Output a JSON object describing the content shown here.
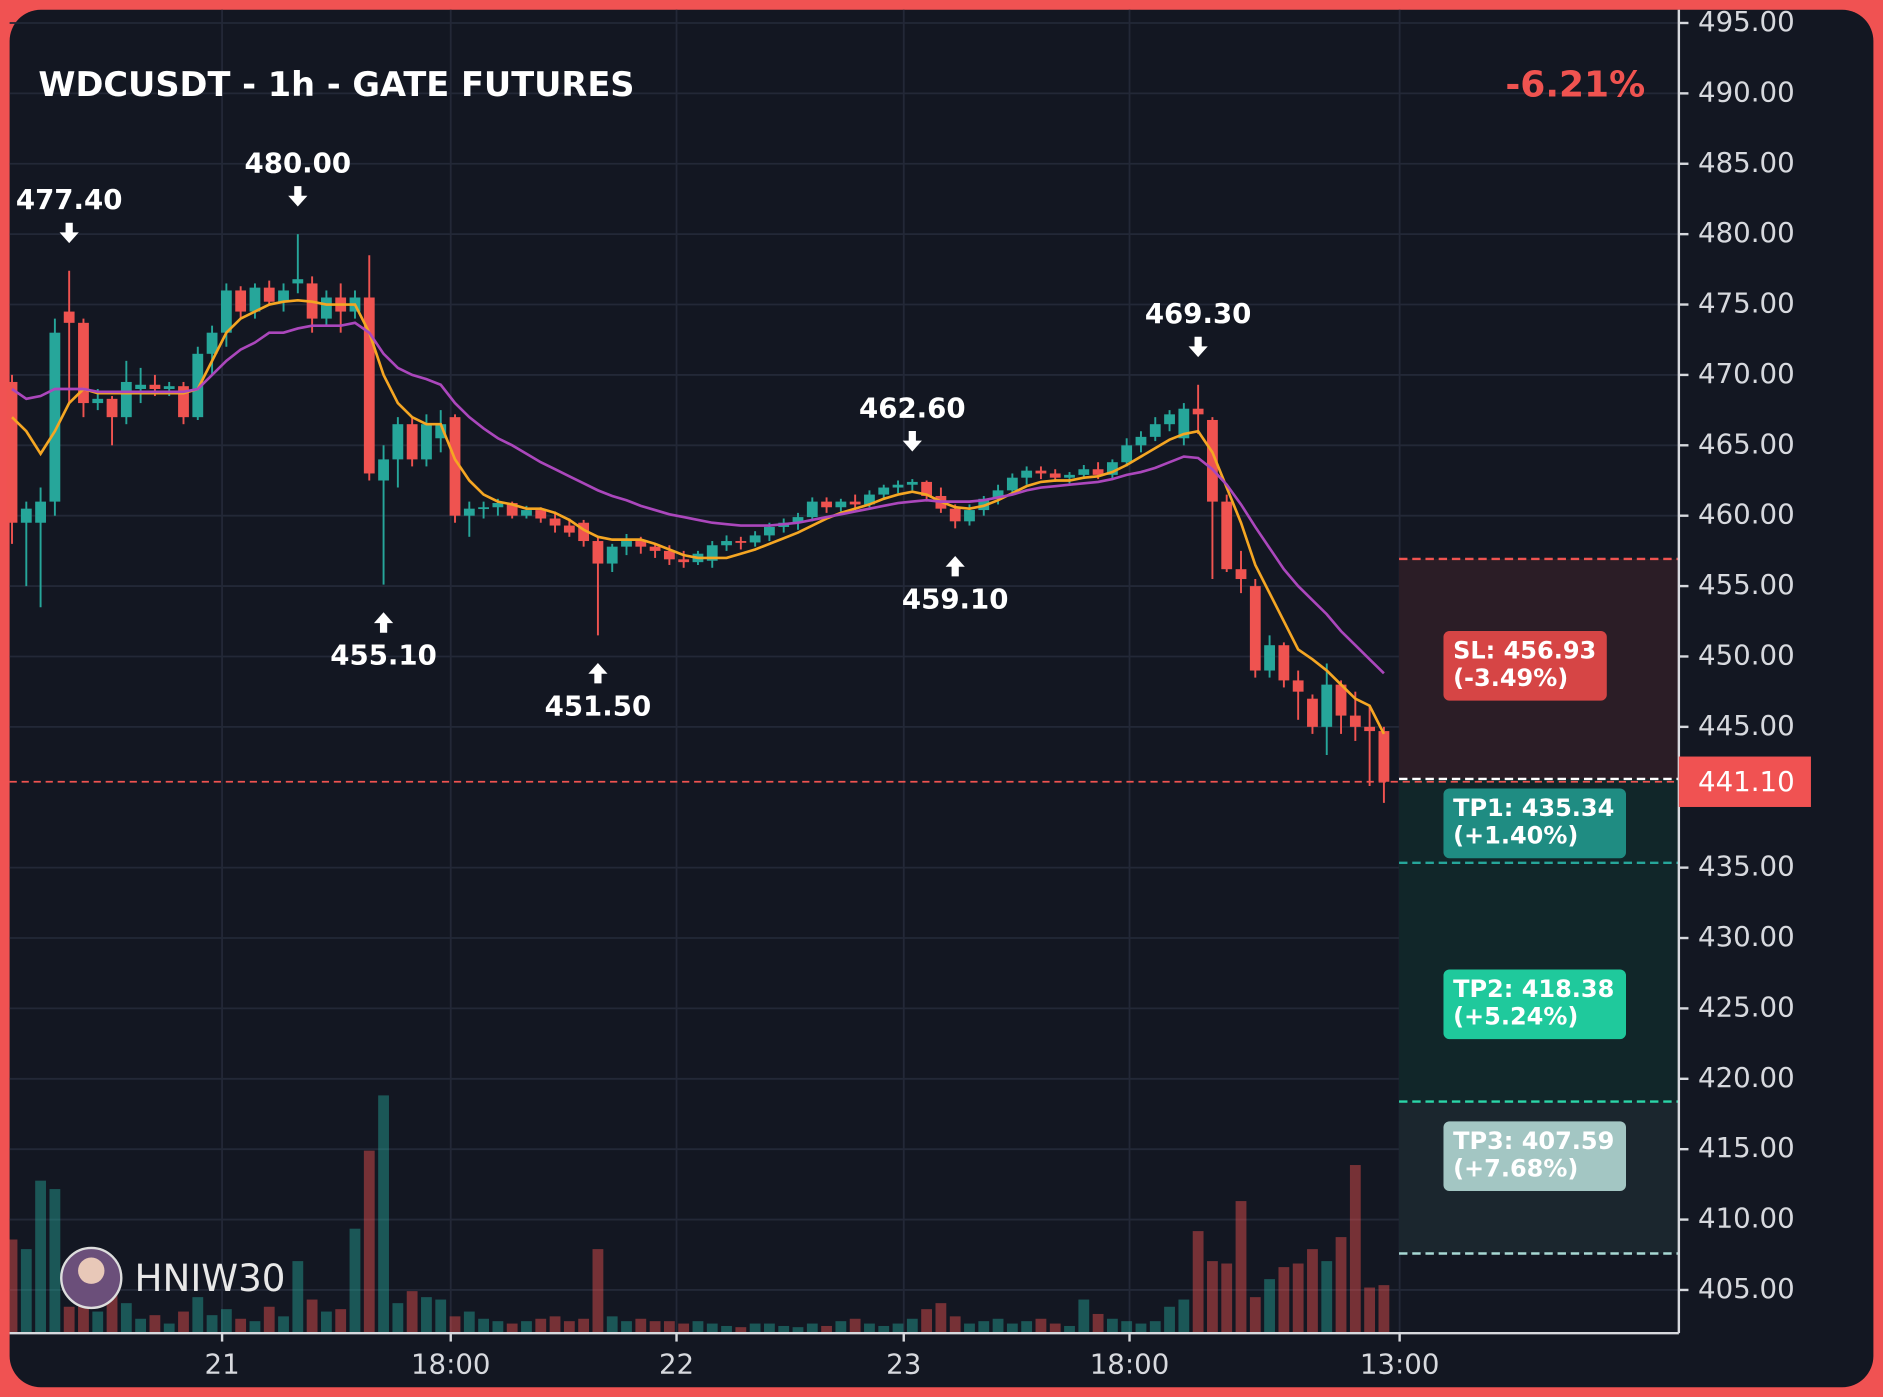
{
  "chart_data": {
    "type": "candlestick",
    "title": "WDCUSDT - 1h - GATE FUTURES",
    "change": "-6.21%",
    "watermark": "HNIW30",
    "ylim": [
      401.93,
      496.62
    ],
    "yticks": [
      {
        "value": 495,
        "label": "495.00"
      },
      {
        "value": 490,
        "label": "490.00"
      },
      {
        "value": 485,
        "label": "485.00"
      },
      {
        "value": 480,
        "label": "480.00"
      },
      {
        "value": 475,
        "label": "475.00"
      },
      {
        "value": 470,
        "label": "470.00"
      },
      {
        "value": 465,
        "label": "465.00"
      },
      {
        "value": 460,
        "label": "460.00"
      },
      {
        "value": 455,
        "label": "455.00"
      },
      {
        "value": 450,
        "label": "450.00"
      },
      {
        "value": 445,
        "label": "445.00"
      },
      {
        "value": 435,
        "label": "435.00"
      },
      {
        "value": 430,
        "label": "430.00"
      },
      {
        "value": 425,
        "label": "425.00"
      },
      {
        "value": 420,
        "label": "420.00"
      },
      {
        "value": 415,
        "label": "415.00"
      },
      {
        "value": 410,
        "label": "410.00"
      },
      {
        "value": 405,
        "label": "405.00"
      }
    ],
    "xticks": [
      {
        "value": 14.7,
        "label": "21"
      },
      {
        "value": 30.7,
        "label": "18:00"
      },
      {
        "value": 46.5,
        "label": "22"
      },
      {
        "value": 62.4,
        "label": "23"
      },
      {
        "value": 78.2,
        "label": "18:00"
      },
      {
        "value": 97.1,
        "label": "13:00"
      }
    ],
    "grid": true,
    "up_color": "#26a69a",
    "down_color": "#ef5350",
    "last_price": {
      "value": 441.1,
      "label": "441.10"
    },
    "candles": [
      [
        469.5,
        470,
        458,
        459.5
      ],
      [
        459.5,
        461,
        455,
        460.5
      ],
      [
        459.5,
        462,
        453.5,
        461
      ],
      [
        461,
        474,
        460,
        473
      ],
      [
        474.5,
        477.4,
        468,
        473.7
      ],
      [
        473.7,
        474,
        467,
        468
      ],
      [
        468,
        469,
        467.5,
        468.3
      ],
      [
        468.3,
        468.5,
        465,
        467
      ],
      [
        467,
        471,
        466.5,
        469.5
      ],
      [
        469,
        470.5,
        468,
        469.3
      ],
      [
        469.3,
        470,
        468.5,
        469
      ],
      [
        469,
        469.5,
        468.5,
        469.2
      ],
      [
        469.2,
        469.5,
        466.5,
        467
      ],
      [
        467,
        472,
        466.8,
        471.5
      ],
      [
        471.5,
        473.5,
        470,
        473
      ],
      [
        473,
        476.5,
        472,
        476
      ],
      [
        476,
        476.3,
        474,
        474.5
      ],
      [
        474.5,
        476.5,
        474,
        476.2
      ],
      [
        476.2,
        476.7,
        475,
        475.2
      ],
      [
        475.2,
        476.5,
        474.5,
        476
      ],
      [
        476.5,
        480,
        475.8,
        476.8
      ],
      [
        476.5,
        477,
        473,
        474
      ],
      [
        474,
        476,
        473.5,
        475.5
      ],
      [
        475.5,
        476.5,
        473,
        474.5
      ],
      [
        474.5,
        476,
        474,
        475.5
      ],
      [
        475.5,
        478.5,
        462.5,
        463
      ],
      [
        462.5,
        465,
        455.1,
        464
      ],
      [
        464,
        467,
        462,
        466.5
      ],
      [
        466.5,
        467,
        463.5,
        464
      ],
      [
        464,
        467.2,
        463.5,
        466.5
      ],
      [
        465.5,
        467.5,
        464.5,
        466.5
      ],
      [
        467,
        467.2,
        459.5,
        460
      ],
      [
        460,
        461,
        458.5,
        460.5
      ],
      [
        460.5,
        461,
        459.8,
        460.6
      ],
      [
        460.6,
        461.2,
        460,
        460.9
      ],
      [
        460.9,
        461,
        459.8,
        460
      ],
      [
        460,
        460.7,
        459.8,
        460.4
      ],
      [
        460.4,
        460.6,
        459.5,
        459.8
      ],
      [
        459.8,
        460.3,
        458.8,
        459.3
      ],
      [
        459.3,
        459.8,
        458.5,
        458.8
      ],
      [
        459.5,
        459.7,
        457.8,
        458.2
      ],
      [
        458.2,
        458.5,
        451.5,
        456.6
      ],
      [
        456.6,
        458,
        456,
        457.8
      ],
      [
        457.8,
        458.7,
        457.2,
        458.2
      ],
      [
        458.2,
        458.5,
        457.3,
        457.8
      ],
      [
        457.8,
        458,
        457,
        457.5
      ],
      [
        457.5,
        457.9,
        456.5,
        456.9
      ],
      [
        456.9,
        457.5,
        456.3,
        456.7
      ],
      [
        456.7,
        457.5,
        456.5,
        457.3
      ],
      [
        456.8,
        458.2,
        456.3,
        457.9
      ],
      [
        457.9,
        458.6,
        457.5,
        458.2
      ],
      [
        458.2,
        458.5,
        457.6,
        458.1
      ],
      [
        458.1,
        458.9,
        457.8,
        458.6
      ],
      [
        458.6,
        459.5,
        458.2,
        459.2
      ],
      [
        459.2,
        459.8,
        458.8,
        459.5
      ],
      [
        459.5,
        460.2,
        459,
        459.9
      ],
      [
        459.9,
        461.3,
        459.6,
        461
      ],
      [
        461,
        461.3,
        460.2,
        460.6
      ],
      [
        460.6,
        461.2,
        460.3,
        461
      ],
      [
        461,
        461.5,
        460.4,
        460.8
      ],
      [
        460.8,
        461.8,
        460.6,
        461.5
      ],
      [
        461.5,
        462.2,
        461.2,
        462
      ],
      [
        462,
        462.5,
        461.6,
        462.2
      ],
      [
        462.2,
        462.6,
        461.8,
        462.4
      ],
      [
        462.4,
        462.5,
        461,
        461.4
      ],
      [
        461.4,
        462,
        460.2,
        460.5
      ],
      [
        460.5,
        460.8,
        459.1,
        459.6
      ],
      [
        459.6,
        460.8,
        459.3,
        460.4
      ],
      [
        460.4,
        461.4,
        460,
        461.2
      ],
      [
        461.2,
        462.2,
        460.8,
        461.8
      ],
      [
        461.8,
        463,
        461.5,
        462.7
      ],
      [
        462.7,
        463.5,
        462.2,
        463.2
      ],
      [
        463.2,
        463.5,
        462.6,
        463
      ],
      [
        463,
        463.3,
        462.4,
        462.7
      ],
      [
        462.7,
        463.1,
        462.3,
        462.9
      ],
      [
        462.9,
        463.6,
        462.6,
        463.3
      ],
      [
        463.3,
        463.8,
        462.6,
        462.9
      ],
      [
        462.9,
        464,
        462.6,
        463.8
      ],
      [
        463.8,
        465.5,
        463.5,
        465
      ],
      [
        465,
        466,
        464.5,
        465.6
      ],
      [
        465.6,
        467,
        465.3,
        466.5
      ],
      [
        466.5,
        467.5,
        466,
        467.2
      ],
      [
        465.5,
        468,
        465,
        467.6
      ],
      [
        467.6,
        469.3,
        465.8,
        467.2
      ],
      [
        466.8,
        467,
        455.5,
        461
      ],
      [
        461,
        461.5,
        456,
        456.2
      ],
      [
        456.2,
        457.5,
        454.5,
        455.5
      ],
      [
        455,
        455.5,
        448.5,
        449
      ],
      [
        449,
        451.5,
        448.5,
        450.8
      ],
      [
        450.8,
        451,
        447.8,
        448.3
      ],
      [
        448.3,
        449,
        445.5,
        447.5
      ],
      [
        447,
        447.3,
        444.5,
        445
      ],
      [
        445,
        449.5,
        443,
        448
      ],
      [
        448,
        448.3,
        444.5,
        445.8
      ],
      [
        445.8,
        447.5,
        444,
        445
      ],
      [
        445,
        446.5,
        440.8,
        444.7
      ],
      [
        444.7,
        445,
        439.6,
        441.1
      ]
    ],
    "volumes": [
      78,
      70,
      127,
      120,
      22,
      30,
      18,
      40,
      25,
      12,
      15,
      8,
      18,
      30,
      15,
      20,
      12,
      10,
      22,
      14,
      60,
      28,
      18,
      20,
      87,
      152,
      198,
      25,
      35,
      30,
      28,
      14,
      18,
      12,
      10,
      8,
      10,
      12,
      14,
      10,
      12,
      70,
      14,
      10,
      12,
      10,
      10,
      8,
      10,
      8,
      6,
      5,
      8,
      8,
      6,
      5,
      8,
      6,
      10,
      12,
      8,
      6,
      8,
      12,
      20,
      25,
      14,
      8,
      10,
      12,
      8,
      10,
      12,
      8,
      6,
      28,
      16,
      12,
      10,
      8,
      10,
      22,
      28,
      85,
      60,
      58,
      110,
      30,
      45,
      55,
      58,
      70,
      60,
      80,
      140,
      38,
      40
    ],
    "ma_series": [
      {
        "color": "#f5a623",
        "values": [
          467,
          466,
          464.4,
          466,
          468,
          469,
          468.7,
          468.7,
          468.7,
          468.7,
          468.7,
          468.7,
          468.7,
          469,
          471,
          473,
          474,
          474.5,
          475,
          475.2,
          475.3,
          475.2,
          475,
          475,
          475,
          473,
          470,
          468,
          467,
          466.5,
          466.5,
          464,
          462.5,
          461.5,
          461,
          460.8,
          460.5,
          460.5,
          460.2,
          459.7,
          459,
          458.5,
          458.3,
          458.3,
          458.3,
          458,
          457.6,
          457.2,
          457,
          457,
          457,
          457.3,
          457.6,
          458,
          458.4,
          458.8,
          459.3,
          459.8,
          460.2,
          460.5,
          460.8,
          461.2,
          461.5,
          461.7,
          461.5,
          461,
          460.6,
          460.5,
          460.7,
          461.1,
          461.6,
          462.1,
          462.4,
          462.5,
          462.5,
          462.7,
          462.8,
          463.1,
          463.6,
          464.2,
          464.8,
          465.4,
          465.8,
          466,
          464.5,
          462,
          459.5,
          456.5,
          454.5,
          452.5,
          450.5,
          449.8,
          449,
          448,
          447,
          446.5,
          444.5
        ]
      },
      {
        "color": "#ab47bc",
        "values": [
          469,
          468.3,
          468.5,
          469,
          469,
          469,
          468.8,
          468.8,
          468.8,
          468.8,
          468.8,
          468.8,
          468.8,
          469,
          470,
          471,
          471.8,
          472.3,
          473,
          473,
          473.3,
          473.5,
          473.5,
          473.5,
          473.7,
          473,
          471.5,
          470.5,
          470,
          469.7,
          469.3,
          468,
          467,
          466.2,
          465.5,
          465,
          464.4,
          463.8,
          463.3,
          462.8,
          462.3,
          461.8,
          461.4,
          461.1,
          460.7,
          460.4,
          460.1,
          459.9,
          459.7,
          459.5,
          459.4,
          459.3,
          459.3,
          459.3,
          459.4,
          459.5,
          459.7,
          459.9,
          460.1,
          460.3,
          460.5,
          460.7,
          460.9,
          461,
          461.1,
          461,
          461,
          461,
          461.1,
          461.3,
          461.5,
          461.8,
          462,
          462.1,
          462.2,
          462.3,
          462.4,
          462.6,
          462.9,
          463.1,
          463.4,
          463.8,
          464.2,
          464.1,
          463.3,
          462.2,
          460.8,
          459.2,
          457.7,
          456.2,
          455,
          454,
          453,
          451.8,
          450.8,
          449.8,
          448.8
        ]
      }
    ],
    "annotations": [
      {
        "index": 4,
        "kind": "high",
        "value": 477.4,
        "label": "477.40"
      },
      {
        "index": 20,
        "kind": "high",
        "value": 480,
        "label": "480.00"
      },
      {
        "index": 26,
        "kind": "low",
        "value": 455.1,
        "label": "455.10"
      },
      {
        "index": 41,
        "kind": "low",
        "value": 451.5,
        "label": "451.50"
      },
      {
        "index": 63,
        "kind": "high",
        "value": 462.6,
        "label": "462.60"
      },
      {
        "index": 66,
        "kind": "low",
        "value": 459.1,
        "label": "459.10"
      },
      {
        "index": 83,
        "kind": "high",
        "value": 469.3,
        "label": "469.30"
      }
    ],
    "entry": 441.3,
    "levels": [
      {
        "price": 456.93,
        "label": "SL: 456.93",
        "change": "(-3.49%)",
        "color": "#ef5350",
        "box": "#d64545"
      },
      {
        "price": 435.34,
        "label": "TP1: 435.34",
        "change": "(+1.40%)",
        "color": "#26a69a",
        "box": "#1f8c82"
      },
      {
        "price": 418.38,
        "label": "TP2: 418.38",
        "change": "(+5.24%)",
        "color": "#2bd5a8",
        "box": "#1fc99c"
      },
      {
        "price": 407.59,
        "label": "TP3: 407.59",
        "change": "(+7.68%)",
        "color": "#a8d8d4",
        "box": "#a3c6c3"
      }
    ]
  }
}
